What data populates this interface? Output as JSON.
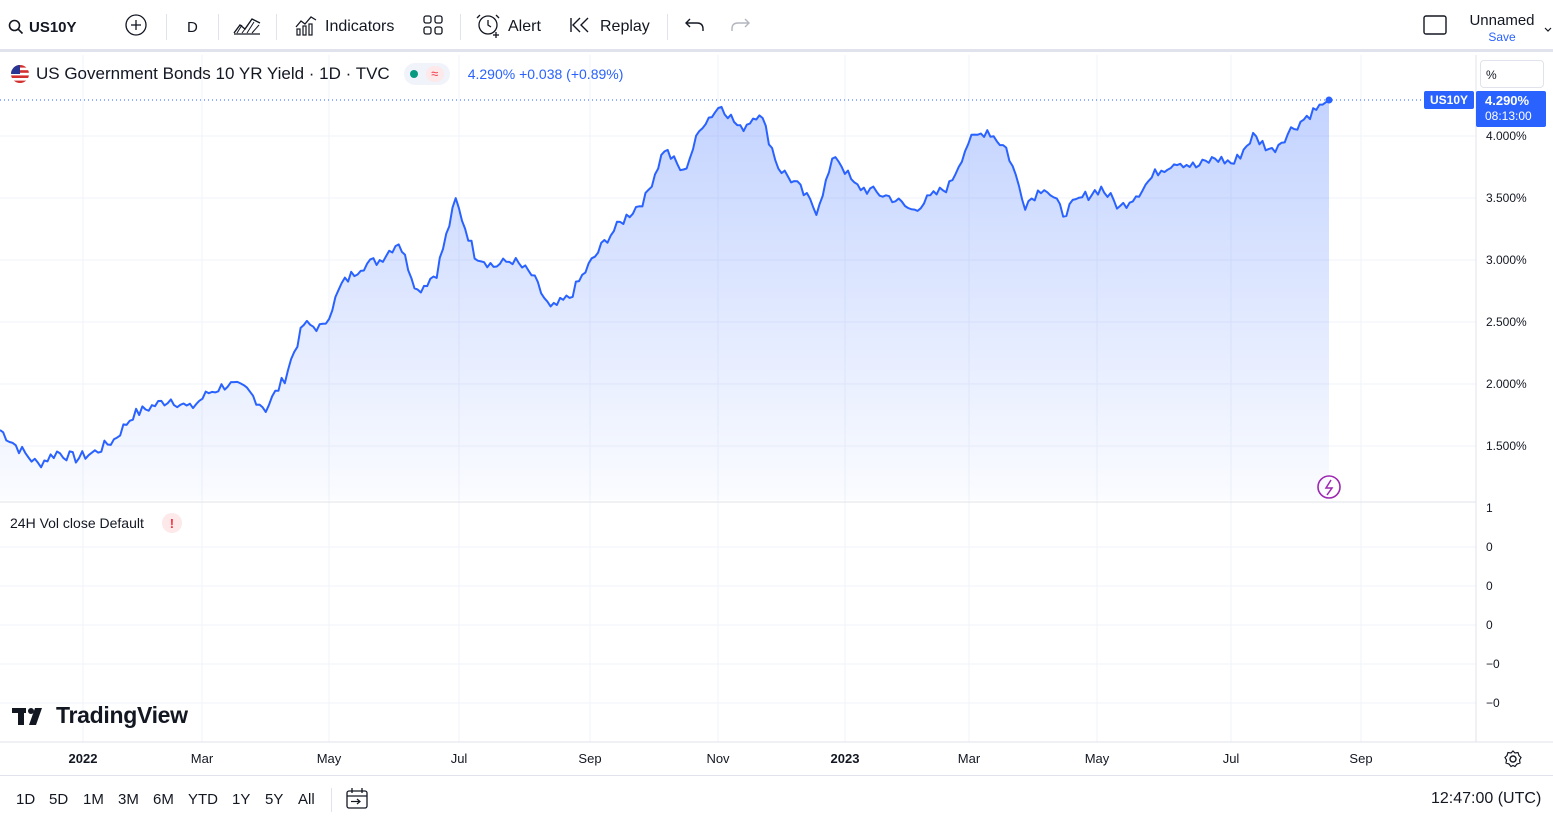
{
  "toolbar": {
    "symbol": "US10Y",
    "interval": "D",
    "indicators_label": "Indicators",
    "alert_label": "Alert",
    "replay_label": "Replay",
    "layout_name": "Unnamed",
    "save_label": "Save"
  },
  "legend": {
    "title": "US Government Bonds 10 YR Yield · 1D · TVC",
    "quote": "4.290% +0.038 (+0.89%)"
  },
  "volume_legend": {
    "label": "24H Vol close Default",
    "warning": "!"
  },
  "price_axis": {
    "unit": "%",
    "ticks": [
      "4.000%",
      "3.500%",
      "3.000%",
      "2.500%",
      "2.000%",
      "1.500%"
    ],
    "current_price": "4.290%",
    "countdown": "08:13:00",
    "symbol_tag": "US10Y"
  },
  "volume_axis": {
    "ticks": [
      "1",
      "0",
      "0",
      "0",
      "−0",
      "−0"
    ]
  },
  "time_axis": {
    "ticks": [
      "2022",
      "Mar",
      "May",
      "Jul",
      "Sep",
      "Nov",
      "2023",
      "Mar",
      "May",
      "Jul",
      "Sep"
    ]
  },
  "watermark": "TradingView",
  "bottom_bar": {
    "ranges": [
      "1D",
      "5D",
      "1M",
      "3M",
      "6M",
      "YTD",
      "1Y",
      "5Y",
      "All"
    ],
    "clock": "12:47:00 (UTC)"
  },
  "colors": {
    "line": "#2962ff",
    "accent": "#2962ff"
  },
  "chart_data": {
    "type": "area",
    "series": [
      {
        "name": "US10Y",
        "x_range": [
          "2021-12",
          "2023-08"
        ],
        "values": [
          1.63,
          1.48,
          1.35,
          1.45,
          1.4,
          1.45,
          1.55,
          1.75,
          1.82,
          1.88,
          1.8,
          1.93,
          2.0,
          1.95,
          1.8,
          2.05,
          2.48,
          2.45,
          2.8,
          2.95,
          3.0,
          3.15,
          2.75,
          2.9,
          3.48,
          3.05,
          2.95,
          3.0,
          2.88,
          2.6,
          2.7,
          2.95,
          3.18,
          3.35,
          3.5,
          3.9,
          3.7,
          4.1,
          4.25,
          4.05,
          4.2,
          3.75,
          3.6,
          3.4,
          3.85,
          3.6,
          3.55,
          3.5,
          3.4,
          3.5,
          3.6,
          3.95,
          4.05,
          3.9,
          3.45,
          3.6,
          3.38,
          3.5,
          3.58,
          3.42,
          3.55,
          3.72,
          3.8,
          3.75,
          3.82,
          3.78,
          4.0,
          3.88,
          4.05,
          4.18,
          4.29
        ]
      }
    ],
    "ylim": [
      1.2,
      4.5
    ],
    "y_ticks": [
      1.5,
      2.0,
      2.5,
      3.0,
      3.5,
      4.0
    ],
    "last_value": 4.29
  }
}
